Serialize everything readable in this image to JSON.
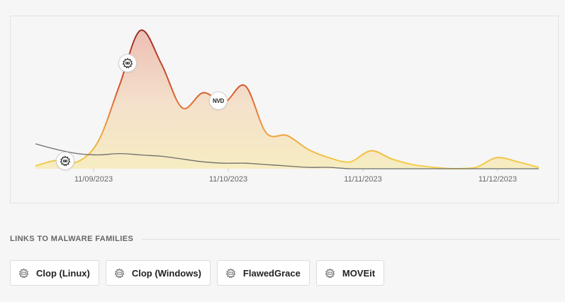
{
  "chart_data": {
    "type": "area",
    "x_ticks": [
      "11/09/2023",
      "11/10/2023",
      "11/11/2023",
      "11/12/2023"
    ],
    "series": [
      {
        "values": [
          2,
          6,
          5,
          20,
          60,
          100,
          76,
          44,
          55,
          48,
          60,
          26,
          24,
          14,
          8,
          5,
          13,
          7,
          3,
          1,
          0,
          1,
          8,
          5,
          1
        ]
      },
      {
        "values": [
          18,
          14,
          11,
          10,
          11,
          10,
          9,
          7,
          5,
          4,
          4,
          3,
          2,
          1,
          1,
          0,
          0,
          0,
          0,
          0,
          0,
          0,
          0,
          0,
          0
        ]
      }
    ],
    "gridlines": false,
    "legend": "none"
  },
  "markers": [
    {
      "icon": "malware-icon"
    },
    {
      "icon": "malware-icon"
    },
    {
      "text": "NVD"
    }
  ],
  "section": {
    "title": "LINKS TO MALWARE FAMILIES"
  },
  "chips": [
    {
      "label": "Clop (Linux)"
    },
    {
      "label": "Clop (Windows)"
    },
    {
      "label": "FlawedGrace"
    },
    {
      "label": "MOVEit"
    }
  ],
  "colors": {
    "peak_line": "#9b2b2b",
    "mid_line": "#e07a2f",
    "low_line": "#f5d24a",
    "secondary_line": "#6e6e6e"
  }
}
